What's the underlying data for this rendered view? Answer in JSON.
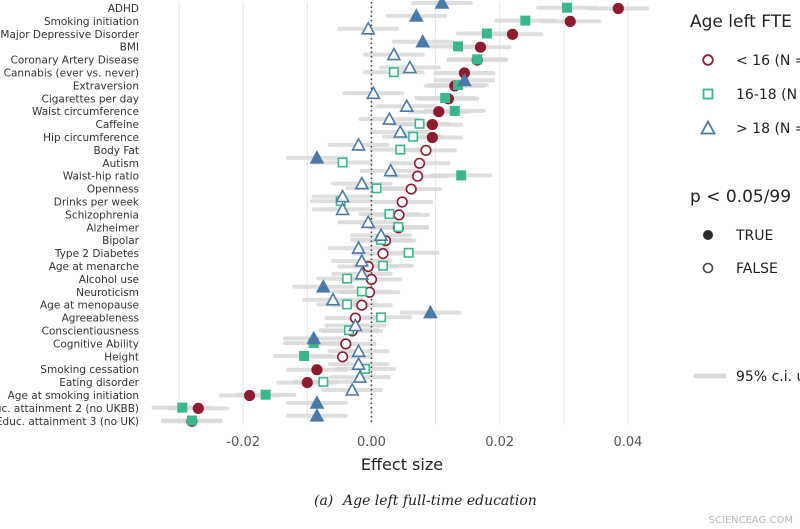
{
  "chart_data": {
    "type": "scatter",
    "xlabel": "Effect size",
    "xlim": [
      -0.035,
      0.045
    ],
    "xticks": [
      "-0.02",
      "0.00",
      "0.02",
      "0.04"
    ],
    "xtick_values": [
      -0.02,
      0.0,
      0.02,
      0.04
    ],
    "reference_line": 0.0,
    "grid": true,
    "caption_label": "(a)",
    "caption_text": "Age left full-time education",
    "traits": [
      "ADHD",
      "Smoking initiation",
      "Major Depressive Disorder",
      "BMI",
      "Coronary Artery Disease",
      "Cannabis (ever vs. never)",
      "Extraversion",
      "Cigarettes per day",
      "Waist circumference",
      "Caffeine",
      "Hip circumference",
      "Body Fat",
      "Autism",
      "Waist-hip ratio",
      "Openness",
      "Drinks per week",
      "Schizophrenia",
      "Alzheimer",
      "Bipolar",
      "Type 2 Diabetes",
      "Age at menarche",
      "Alcohol use",
      "Neuroticism",
      "Age at menopause",
      "Agreeableness",
      "Conscientiousness",
      "Cognitive Ability",
      "Height",
      "Smoking cessation",
      "Eating disorder",
      "Age at smoking initiation",
      "Educ. attainment 2 (no UKBB)",
      "Educ. attainment 3 (no UK)"
    ],
    "series": [
      {
        "name": "< 16 (N =",
        "marker": "circle",
        "color": "#8c1c2e",
        "values": [
          0.0385,
          0.031,
          0.022,
          0.017,
          0.0165,
          0.0145,
          0.013,
          0.012,
          0.0105,
          0.0095,
          0.0095,
          0.0085,
          0.0075,
          0.0072,
          0.0062,
          0.0048,
          0.0043,
          0.0042,
          0.0022,
          0.0018,
          -0.0005,
          0.0,
          -0.0003,
          -0.0015,
          -0.0025,
          -0.003,
          -0.004,
          -0.0045,
          -0.0085,
          -0.01,
          -0.019,
          -0.027,
          -0.028
        ],
        "significant": [
          true,
          true,
          true,
          true,
          true,
          true,
          true,
          true,
          true,
          true,
          true,
          false,
          false,
          false,
          false,
          false,
          false,
          false,
          false,
          false,
          false,
          false,
          false,
          false,
          false,
          false,
          false,
          false,
          true,
          true,
          true,
          true,
          true
        ]
      },
      {
        "name": "16-18 (N =",
        "marker": "square",
        "color": "#3ab88c",
        "values": [
          0.0305,
          0.024,
          0.018,
          0.0135,
          0.0165,
          0.0035,
          0.0135,
          0.0115,
          0.013,
          0.0075,
          0.0065,
          0.0045,
          -0.0045,
          0.014,
          0.0008,
          -0.0048,
          0.0028,
          0.0042,
          0.0015,
          0.0058,
          0.0018,
          -0.0038,
          -0.0015,
          -0.0038,
          0.0015,
          -0.0035,
          -0.009,
          -0.0105,
          -0.001,
          -0.0075,
          -0.0165,
          -0.0295,
          -0.028
        ],
        "significant": [
          true,
          true,
          true,
          true,
          true,
          false,
          true,
          true,
          true,
          false,
          false,
          false,
          false,
          true,
          false,
          false,
          false,
          false,
          false,
          false,
          false,
          false,
          false,
          false,
          false,
          false,
          true,
          true,
          false,
          false,
          true,
          true,
          true
        ]
      },
      {
        "name": "> 18 (N =",
        "marker": "triangle",
        "color": "#4a7aa8",
        "values": [
          0.011,
          0.007,
          -0.0005,
          0.008,
          0.0035,
          0.006,
          0.0145,
          0.0003,
          0.0055,
          0.0028,
          0.0045,
          -0.002,
          -0.0085,
          0.003,
          -0.0015,
          -0.0045,
          -0.0045,
          -0.0005,
          0.0015,
          -0.002,
          -0.0015,
          -0.0015,
          -0.0075,
          -0.006,
          0.0092,
          -0.0025,
          -0.009,
          -0.002,
          -0.002,
          -0.0018,
          -0.003,
          -0.0085,
          -0.0085
        ],
        "significant": [
          true,
          true,
          false,
          true,
          false,
          false,
          true,
          false,
          false,
          false,
          false,
          false,
          true,
          false,
          false,
          false,
          false,
          false,
          false,
          false,
          false,
          false,
          true,
          false,
          true,
          false,
          true,
          false,
          false,
          false,
          false,
          true,
          true
        ]
      }
    ],
    "ci_halfwidth": 0.0045,
    "legend": {
      "position": "right",
      "group_title": "Age left FTE",
      "sig_title": "p < 0.05/99",
      "sig_true": "TRUE",
      "sig_false": "FALSE",
      "ci_label": "95% c.i. ur"
    }
  },
  "watermark": "SCIENCEAG.COM",
  "colors": {
    "grid": "#e6e6e6",
    "ci": "#d9d9d9",
    "zero_line": "#444444",
    "sig_dark": "#2b2b2b"
  }
}
